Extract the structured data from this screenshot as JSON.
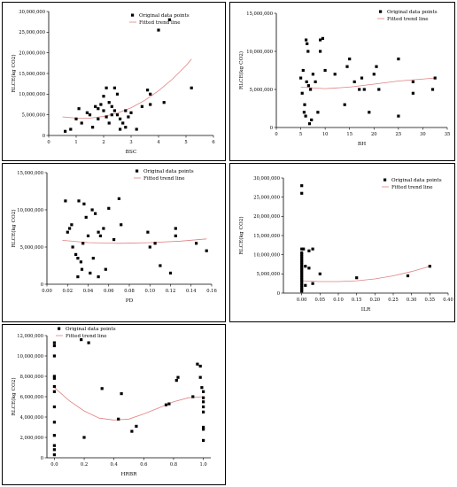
{
  "chart_data": [
    {
      "id": "bsc",
      "type": "scatter",
      "xlabel": "BSC",
      "ylabel": "RLCE(kg CO2)",
      "xlim": [
        0,
        6
      ],
      "ylim": [
        0,
        30000000
      ],
      "x_ticks": [
        "0",
        "1",
        "2",
        "3",
        "4",
        "5",
        "6"
      ],
      "y_ticks": [
        "0",
        "5,000,000",
        "10,000,000",
        "15,000,000",
        "20,000,000",
        "25,000,000",
        "30,000,000"
      ],
      "legend": [
        "Original data points",
        "Fitted trend line"
      ],
      "legend_position": "top-right",
      "points": [
        [
          0.6,
          1000000
        ],
        [
          0.8,
          1500000
        ],
        [
          1.0,
          4000000
        ],
        [
          1.1,
          6500000
        ],
        [
          1.2,
          3000000
        ],
        [
          1.4,
          5500000
        ],
        [
          1.5,
          5000000
        ],
        [
          1.6,
          2000000
        ],
        [
          1.7,
          7000000
        ],
        [
          1.8,
          4000000
        ],
        [
          1.8,
          6500000
        ],
        [
          1.9,
          7500000
        ],
        [
          2.0,
          6000000
        ],
        [
          2.0,
          9500000
        ],
        [
          2.1,
          11500000
        ],
        [
          2.1,
          4500000
        ],
        [
          2.2,
          8000000
        ],
        [
          2.2,
          3000000
        ],
        [
          2.3,
          7000000
        ],
        [
          2.3,
          5000000
        ],
        [
          2.4,
          11500000
        ],
        [
          2.4,
          6000000
        ],
        [
          2.5,
          10000000
        ],
        [
          2.5,
          5000000
        ],
        [
          2.6,
          4000000
        ],
        [
          2.6,
          1500000
        ],
        [
          2.7,
          3000000
        ],
        [
          2.8,
          2000000
        ],
        [
          2.8,
          6000000
        ],
        [
          2.9,
          4500000
        ],
        [
          3.0,
          5500000
        ],
        [
          3.2,
          1500000
        ],
        [
          3.4,
          7000000
        ],
        [
          3.6,
          11000000
        ],
        [
          3.7,
          10000000
        ],
        [
          3.7,
          7500000
        ],
        [
          4.0,
          25500000
        ],
        [
          4.2,
          8000000
        ],
        [
          4.4,
          28000000
        ],
        [
          5.2,
          11500000
        ]
      ],
      "trend": [
        [
          0.5,
          4500000
        ],
        [
          1.0,
          4200000
        ],
        [
          1.5,
          4200000
        ],
        [
          2.0,
          4600000
        ],
        [
          2.5,
          5400000
        ],
        [
          3.0,
          6700000
        ],
        [
          3.5,
          8500000
        ],
        [
          4.0,
          10800000
        ],
        [
          4.5,
          13600000
        ],
        [
          5.0,
          16900000
        ],
        [
          5.2,
          18500000
        ]
      ]
    },
    {
      "id": "bh",
      "type": "scatter",
      "xlabel": "BH",
      "ylabel": "RLCE(kg CO2)",
      "xlim": [
        0,
        35
      ],
      "ylim": [
        0,
        15000000
      ],
      "x_ticks": [
        "0",
        "5",
        "10",
        "15",
        "20",
        "25",
        "30",
        "35"
      ],
      "y_ticks": [
        "0",
        "5,000,000",
        "10,000,000",
        "15,000,000"
      ],
      "legend": [
        "Original data points",
        "Fitted trend line"
      ],
      "legend_position": "top-right",
      "points": [
        [
          5,
          6500000
        ],
        [
          5.3,
          4500000
        ],
        [
          5.5,
          7500000
        ],
        [
          5.7,
          2000000
        ],
        [
          5.8,
          3000000
        ],
        [
          6,
          1500000
        ],
        [
          6.1,
          11500000
        ],
        [
          6.2,
          6000000
        ],
        [
          6.3,
          11000000
        ],
        [
          6.5,
          10000000
        ],
        [
          6.6,
          5500000
        ],
        [
          6.8,
          500000
        ],
        [
          7,
          5000000
        ],
        [
          7.2,
          1000000
        ],
        [
          7.5,
          7000000
        ],
        [
          8,
          6000000
        ],
        [
          8.5,
          2000000
        ],
        [
          9,
          10000000
        ],
        [
          9,
          11500000
        ],
        [
          9.5,
          11700000
        ],
        [
          10,
          7500000
        ],
        [
          12,
          7000000
        ],
        [
          14,
          3000000
        ],
        [
          14.5,
          8000000
        ],
        [
          15,
          9000000
        ],
        [
          16,
          6000000
        ],
        [
          17,
          5000000
        ],
        [
          17.5,
          6500000
        ],
        [
          18,
          5000000
        ],
        [
          19,
          2000000
        ],
        [
          20,
          7000000
        ],
        [
          20.5,
          8000000
        ],
        [
          21,
          5000000
        ],
        [
          25,
          9000000
        ],
        [
          25,
          1500000
        ],
        [
          28,
          6000000
        ],
        [
          28,
          4500000
        ],
        [
          32,
          5000000
        ],
        [
          32.5,
          6500000
        ]
      ],
      "trend": [
        [
          5,
          5300000
        ],
        [
          10,
          5100000
        ],
        [
          15,
          5300000
        ],
        [
          20,
          5700000
        ],
        [
          25,
          6100000
        ],
        [
          32.5,
          6500000
        ]
      ]
    },
    {
      "id": "pd",
      "type": "scatter",
      "xlabel": "PD",
      "ylabel": "RLCE(kg CO2)",
      "xlim": [
        0,
        0.16
      ],
      "ylim": [
        0,
        15000000
      ],
      "x_ticks": [
        "0.00",
        "0.02",
        "0.04",
        "0.06",
        "0.08",
        "0.10",
        "0.12",
        "0.14",
        "0.16"
      ],
      "y_ticks": [
        "0",
        "5,000,000",
        "10,000,000",
        "15,000,000"
      ],
      "legend": [
        "Original data points",
        "Fitted trend line"
      ],
      "legend_position": "top-right",
      "points": [
        [
          0.018,
          11200000
        ],
        [
          0.02,
          7000000
        ],
        [
          0.022,
          7500000
        ],
        [
          0.024,
          8000000
        ],
        [
          0.025,
          5000000
        ],
        [
          0.028,
          4000000
        ],
        [
          0.03,
          3500000
        ],
        [
          0.03,
          1000000
        ],
        [
          0.031,
          11200000
        ],
        [
          0.033,
          3000000
        ],
        [
          0.034,
          2000000
        ],
        [
          0.035,
          5500000
        ],
        [
          0.036,
          10800000
        ],
        [
          0.038,
          9000000
        ],
        [
          0.04,
          6500000
        ],
        [
          0.042,
          1500000
        ],
        [
          0.044,
          10000000
        ],
        [
          0.045,
          3500000
        ],
        [
          0.047,
          9500000
        ],
        [
          0.05,
          7000000
        ],
        [
          0.05,
          1000000
        ],
        [
          0.052,
          6500000
        ],
        [
          0.055,
          7500000
        ],
        [
          0.057,
          2000000
        ],
        [
          0.06,
          10200000
        ],
        [
          0.065,
          6000000
        ],
        [
          0.07,
          11500000
        ],
        [
          0.072,
          8000000
        ],
        [
          0.098,
          7000000
        ],
        [
          0.1,
          5000000
        ],
        [
          0.105,
          5500000
        ],
        [
          0.11,
          2500000
        ],
        [
          0.12,
          1500000
        ],
        [
          0.125,
          7500000
        ],
        [
          0.125,
          6500000
        ],
        [
          0.145,
          5500000
        ],
        [
          0.155,
          4500000
        ]
      ],
      "trend": [
        [
          0.015,
          5900000
        ],
        [
          0.04,
          5600000
        ],
        [
          0.07,
          5500000
        ],
        [
          0.1,
          5600000
        ],
        [
          0.13,
          5800000
        ],
        [
          0.155,
          6100000
        ]
      ]
    },
    {
      "id": "ilr",
      "type": "scatter",
      "xlabel": "ILR",
      "ylabel": "RLCE(kg CO2)",
      "xlim": [
        -0.05,
        0.4
      ],
      "ylim": [
        0,
        30000000
      ],
      "x_ticks": [
        "0.00",
        "0.05",
        "0.10",
        "0.15",
        "0.20",
        "0.25",
        "0.30",
        "0.35",
        "0.40"
      ],
      "x_tick_values": [
        0,
        0.05,
        0.1,
        0.15,
        0.2,
        0.25,
        0.3,
        0.35,
        0.4
      ],
      "y_ticks": [
        "0",
        "5,000,000",
        "10,000,000",
        "15,000,000",
        "20,000,000",
        "25,000,000",
        "30,000,000"
      ],
      "legend": [
        "Original data points",
        "Fitted trend line"
      ],
      "legend_position": "top-right",
      "points": [
        [
          0,
          28000000
        ],
        [
          0,
          26000000
        ],
        [
          0,
          11500000
        ],
        [
          0,
          10500000
        ],
        [
          0,
          10000000
        ],
        [
          0,
          9500000
        ],
        [
          0,
          9000000
        ],
        [
          0,
          8500000
        ],
        [
          0,
          8000000
        ],
        [
          0,
          7500000
        ],
        [
          0,
          7000000
        ],
        [
          0,
          6500000
        ],
        [
          0,
          6000000
        ],
        [
          0,
          5500000
        ],
        [
          0,
          5000000
        ],
        [
          0,
          4500000
        ],
        [
          0,
          4000000
        ],
        [
          0,
          3500000
        ],
        [
          0,
          3000000
        ],
        [
          0,
          2500000
        ],
        [
          0,
          2000000
        ],
        [
          0,
          1500000
        ],
        [
          0,
          1000000
        ],
        [
          0,
          500000
        ],
        [
          0.005,
          11500000
        ],
        [
          0.01,
          7000000
        ],
        [
          0.01,
          2000000
        ],
        [
          0.02,
          11000000
        ],
        [
          0.02,
          6500000
        ],
        [
          0.03,
          11500000
        ],
        [
          0.03,
          2500000
        ],
        [
          0.05,
          5000000
        ],
        [
          0.15,
          4000000
        ],
        [
          0.29,
          4500000
        ],
        [
          0.35,
          7000000
        ]
      ],
      "trend": [
        [
          0,
          3200000
        ],
        [
          0.05,
          3000000
        ],
        [
          0.1,
          3000000
        ],
        [
          0.15,
          3200000
        ],
        [
          0.2,
          3700000
        ],
        [
          0.25,
          4500000
        ],
        [
          0.3,
          5600000
        ],
        [
          0.35,
          7000000
        ]
      ]
    },
    {
      "id": "hrbr",
      "type": "scatter",
      "xlabel": "HRBR",
      "ylabel": "RLCE(kg CO2)",
      "xlim": [
        -0.05,
        1.05
      ],
      "ylim": [
        0,
        12000000
      ],
      "x_ticks": [
        "0.0",
        "0.2",
        "0.4",
        "0.6",
        "0.8",
        "1.0"
      ],
      "x_tick_values": [
        0,
        0.2,
        0.4,
        0.6,
        0.8,
        1.0
      ],
      "y_ticks": [
        "0",
        "2,000,000",
        "4,000,000",
        "6,000,000",
        "8,000,000",
        "10,000,000",
        "12,000,000"
      ],
      "legend": [
        "Original data points",
        "Fitted trend line"
      ],
      "legend_position": "top-left",
      "points": [
        [
          0,
          11300000
        ],
        [
          0,
          11000000
        ],
        [
          0,
          10000000
        ],
        [
          0,
          8000000
        ],
        [
          0,
          7800000
        ],
        [
          0,
          7000000
        ],
        [
          0,
          6500000
        ],
        [
          0,
          5000000
        ],
        [
          0,
          3500000
        ],
        [
          0,
          2200000
        ],
        [
          0,
          1200000
        ],
        [
          0,
          800000
        ],
        [
          0,
          300000
        ],
        [
          0.18,
          11600000
        ],
        [
          0.2,
          2000000
        ],
        [
          0.23,
          11300000
        ],
        [
          0.32,
          6800000
        ],
        [
          0.43,
          3800000
        ],
        [
          0.45,
          6300000
        ],
        [
          0.52,
          2600000
        ],
        [
          0.55,
          3100000
        ],
        [
          0.75,
          5200000
        ],
        [
          0.77,
          5300000
        ],
        [
          0.82,
          7600000
        ],
        [
          0.83,
          7900000
        ],
        [
          0.93,
          6000000
        ],
        [
          0.96,
          9200000
        ],
        [
          0.98,
          9000000
        ],
        [
          0.98,
          7900000
        ],
        [
          0.99,
          6900000
        ],
        [
          1.0,
          6500000
        ],
        [
          1.0,
          5900000
        ],
        [
          1.0,
          5500000
        ],
        [
          1.0,
          5000000
        ],
        [
          1.0,
          4500000
        ],
        [
          1.0,
          3000000
        ],
        [
          1.0,
          2800000
        ],
        [
          1.0,
          1700000
        ]
      ],
      "trend": [
        [
          0,
          6900000
        ],
        [
          0.1,
          5600000
        ],
        [
          0.2,
          4600000
        ],
        [
          0.3,
          3900000
        ],
        [
          0.4,
          3700000
        ],
        [
          0.5,
          3800000
        ],
        [
          0.6,
          4300000
        ],
        [
          0.7,
          4900000
        ],
        [
          0.8,
          5500000
        ],
        [
          0.9,
          5900000
        ],
        [
          1.0,
          6000000
        ]
      ]
    }
  ]
}
